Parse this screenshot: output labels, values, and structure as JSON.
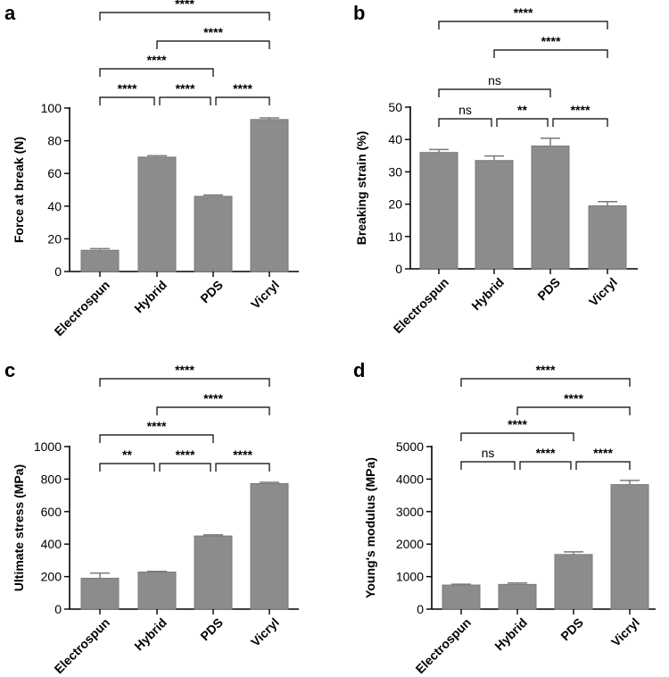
{
  "chart_data": [
    {
      "panel": "a",
      "type": "bar",
      "ylabel": "Force at break (N)",
      "xlabel": "",
      "categories": [
        "Electrospun",
        "Hybrid",
        "PDS",
        "Vicryl"
      ],
      "values": [
        13,
        70,
        46,
        93
      ],
      "errors": [
        1,
        0.8,
        0.8,
        1
      ],
      "ylim": [
        0,
        100
      ],
      "yticks": [
        0,
        20,
        40,
        60,
        80,
        100
      ],
      "color": "#8c8c8c",
      "significance": [
        {
          "from": 0,
          "to": 1,
          "label": "****"
        },
        {
          "from": 1,
          "to": 2,
          "label": "****"
        },
        {
          "from": 2,
          "to": 3,
          "label": "****"
        },
        {
          "from": 0,
          "to": 2,
          "label": "****"
        },
        {
          "from": 1,
          "to": 3,
          "label": "****"
        },
        {
          "from": 0,
          "to": 3,
          "label": "****"
        }
      ]
    },
    {
      "panel": "b",
      "type": "bar",
      "ylabel": "Breaking strain (%)",
      "xlabel": "",
      "categories": [
        "Electrospun",
        "Hybrid",
        "PDS",
        "Vicryl"
      ],
      "values": [
        36,
        33.5,
        38,
        19.5
      ],
      "errors": [
        0.9,
        1.4,
        2.4,
        1.3
      ],
      "ylim": [
        0,
        50
      ],
      "yticks": [
        0,
        10,
        20,
        30,
        40,
        50
      ],
      "color": "#8c8c8c",
      "significance": [
        {
          "from": 0,
          "to": 1,
          "label": "ns"
        },
        {
          "from": 1,
          "to": 2,
          "label": "**"
        },
        {
          "from": 2,
          "to": 3,
          "label": "****"
        },
        {
          "from": 0,
          "to": 2,
          "label": "ns"
        },
        {
          "from": 1,
          "to": 3,
          "label": "****"
        },
        {
          "from": 0,
          "to": 3,
          "label": "****"
        }
      ]
    },
    {
      "panel": "c",
      "type": "bar",
      "ylabel": "Ultimate stress (MPa)",
      "xlabel": "",
      "categories": [
        "Electrospun",
        "Hybrid",
        "PDS",
        "Vicryl"
      ],
      "values": [
        190,
        228,
        450,
        772
      ],
      "errors": [
        32,
        4,
        7,
        8
      ],
      "ylim": [
        0,
        1000
      ],
      "yticks": [
        0,
        200,
        400,
        600,
        800,
        1000
      ],
      "color": "#8c8c8c",
      "significance": [
        {
          "from": 0,
          "to": 1,
          "label": "**"
        },
        {
          "from": 1,
          "to": 2,
          "label": "****"
        },
        {
          "from": 2,
          "to": 3,
          "label": "****"
        },
        {
          "from": 0,
          "to": 2,
          "label": "****"
        },
        {
          "from": 1,
          "to": 3,
          "label": "****"
        },
        {
          "from": 0,
          "to": 3,
          "label": "****"
        }
      ]
    },
    {
      "panel": "d",
      "type": "bar",
      "ylabel": "Young's modulus (MPa)",
      "xlabel": "",
      "categories": [
        "Electrospun",
        "Hybrid",
        "PDS",
        "Vicryl"
      ],
      "values": [
        740,
        760,
        1680,
        3830
      ],
      "errors": [
        25,
        45,
        80,
        130
      ],
      "ylim": [
        0,
        5000
      ],
      "yticks": [
        0,
        1000,
        2000,
        3000,
        4000,
        5000
      ],
      "color": "#8c8c8c",
      "significance": [
        {
          "from": 0,
          "to": 1,
          "label": "ns"
        },
        {
          "from": 1,
          "to": 2,
          "label": "****"
        },
        {
          "from": 2,
          "to": 3,
          "label": "****"
        },
        {
          "from": 0,
          "to": 2,
          "label": "****"
        },
        {
          "from": 1,
          "to": 3,
          "label": "****"
        },
        {
          "from": 0,
          "to": 3,
          "label": "****"
        }
      ]
    }
  ]
}
